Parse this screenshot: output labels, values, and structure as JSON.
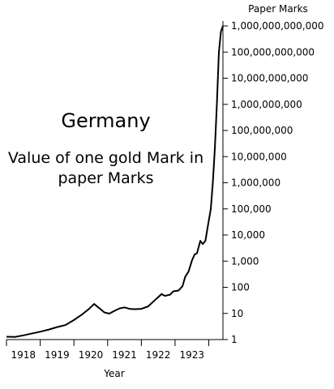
{
  "chart_data": {
    "type": "line",
    "title": "Germany",
    "subtitle": "Value of one gold Mark in paper Marks",
    "xlabel": "Year",
    "ylabel": "Paper Marks",
    "y_scale": "log10",
    "ylim": [
      1,
      1000000000000
    ],
    "xlim": [
      1917.5,
      1923.92
    ],
    "grid": false,
    "x_ticks": [
      "1918",
      "1919",
      "1920",
      "1921",
      "1922",
      "1923"
    ],
    "y_ticks": [
      "1",
      "10",
      "100",
      "1,000",
      "10,000",
      "100,000",
      "1,000,000",
      "10,000,000",
      "100,000,000",
      "1,000,000,000",
      "10,000,000,000",
      "100,000,000,000",
      "1,000,000,000,000"
    ],
    "series": [
      {
        "points": [
          [
            1917.5,
            1.28
          ],
          [
            1917.75,
            1.26
          ],
          [
            1918.0,
            1.45
          ],
          [
            1918.25,
            1.7
          ],
          [
            1918.5,
            2.0
          ],
          [
            1918.75,
            2.4
          ],
          [
            1919.0,
            3.0
          ],
          [
            1919.25,
            3.6
          ],
          [
            1919.5,
            5.6
          ],
          [
            1919.75,
            9.3
          ],
          [
            1919.95,
            15
          ],
          [
            1920.1,
            23
          ],
          [
            1920.25,
            16
          ],
          [
            1920.4,
            11
          ],
          [
            1920.55,
            9.8
          ],
          [
            1920.7,
            12.5
          ],
          [
            1920.85,
            15.5
          ],
          [
            1921.0,
            17
          ],
          [
            1921.15,
            15
          ],
          [
            1921.3,
            14.5
          ],
          [
            1921.5,
            15
          ],
          [
            1921.7,
            18.5
          ],
          [
            1921.85,
            28
          ],
          [
            1922.0,
            42
          ],
          [
            1922.1,
            55
          ],
          [
            1922.2,
            47
          ],
          [
            1922.35,
            52
          ],
          [
            1922.45,
            70
          ],
          [
            1922.6,
            75
          ],
          [
            1922.72,
            110
          ],
          [
            1922.8,
            250
          ],
          [
            1922.9,
            400
          ],
          [
            1923.0,
            1050
          ],
          [
            1923.08,
            1800
          ],
          [
            1923.15,
            2000
          ],
          [
            1923.25,
            6000
          ],
          [
            1923.32,
            4500
          ],
          [
            1923.4,
            6000
          ],
          [
            1923.48,
            25000
          ],
          [
            1923.56,
            100000
          ],
          [
            1923.62,
            1000000
          ],
          [
            1923.68,
            20000000
          ],
          [
            1923.74,
            1000000000
          ],
          [
            1923.8,
            100000000000
          ],
          [
            1923.86,
            600000000000
          ],
          [
            1923.92,
            1000000000000
          ]
        ]
      }
    ]
  }
}
